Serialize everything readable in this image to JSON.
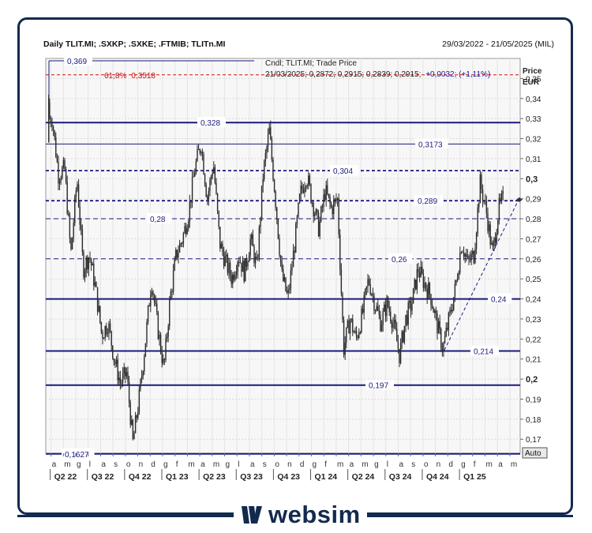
{
  "header": {
    "title": "Daily TLIT.MI; .SXKP; .SXKE; .FTMIB; TLITn.MI",
    "date_range": "29/03/2022 - 21/05/2025 (MIL)"
  },
  "legend": {
    "line1": "Cndl; TLIT.MI; Trade Price",
    "line2_prefix": "21/03/2025; 0,2872; 0,2915; 0,2839; 0,2915;",
    "line2_change": "+0,0032; (+1,11%)"
  },
  "axis": {
    "price_label": "Price",
    "currency_label": "EUR",
    "auto_label": "Auto",
    "y_ticks": [
      "0,17",
      "0,18",
      "0,19",
      "0,2",
      "0,21",
      "0,22",
      "0,23",
      "0,24",
      "0,25",
      "0,26",
      "0,27",
      "0,28",
      "0,29",
      "0,3",
      "0,31",
      "0,32",
      "0,33",
      "0,34",
      "0,35"
    ],
    "bold_ticks": [
      "0,2",
      "0,3"
    ],
    "month_letters": [
      "a",
      "m",
      "g",
      "l",
      "a",
      "s",
      "o",
      "n",
      "d",
      "g",
      "f",
      "m",
      "a",
      "m",
      "g",
      "l",
      "a",
      "s",
      "o",
      "n",
      "d",
      "g",
      "f",
      "m",
      "a",
      "m",
      "g",
      "l",
      "a",
      "s",
      "o",
      "n",
      "d",
      "g",
      "f",
      "m",
      "a",
      "m"
    ],
    "quarters": [
      "Q2 22",
      "Q3 22",
      "Q4 22",
      "Q1 23",
      "Q2 23",
      "Q3 23",
      "Q4 23",
      "Q1 24",
      "Q2 24",
      "Q3 24",
      "Q4 24",
      "Q1 25"
    ]
  },
  "brand": {
    "name": "websim"
  },
  "colors": {
    "level_line": "#1a1a7e",
    "fib_line": "#cc1111",
    "candle": "#2b2b2b",
    "grid": "#dadada",
    "frame": "#132a4f",
    "change_text": "#1a1a9e"
  },
  "chart_data": {
    "type": "candlestick",
    "title": "Daily TLIT.MI; .SXKP; .SXKE; .FTMIB; TLITn.MI",
    "series_name": "Cndl; TLIT.MI; Trade Price",
    "ylabel": "Price EUR",
    "ylim": [
      0.163,
      0.36
    ],
    "x_range": [
      "29/03/2022",
      "21/05/2025"
    ],
    "last_candle": {
      "date": "21/03/2025",
      "open": 0.2872,
      "high": 0.2915,
      "low": 0.2839,
      "close": 0.2915,
      "change": 0.0032,
      "change_pct": 1.11
    },
    "horizontal_levels": [
      {
        "label": "0,369",
        "value": 0.369,
        "style": "solid-thin"
      },
      {
        "label": "0,3518",
        "value": 0.3518,
        "style": "fib",
        "fib_label": "61,8%"
      },
      {
        "label": "0,328",
        "value": 0.328,
        "style": "solid-thick"
      },
      {
        "label": "0,3173",
        "value": 0.3173,
        "style": "solid-thin"
      },
      {
        "label": "0,304",
        "value": 0.304,
        "style": "dashed-thick"
      },
      {
        "label": "0,289",
        "value": 0.289,
        "style": "dashed-thick"
      },
      {
        "label": "0,28",
        "value": 0.28,
        "style": "dashed-thin"
      },
      {
        "label": "0,26",
        "value": 0.26,
        "style": "dashed-thin"
      },
      {
        "label": "0,24",
        "value": 0.24,
        "style": "solid-thick"
      },
      {
        "label": "0,214",
        "value": 0.214,
        "style": "solid-thick"
      },
      {
        "label": "0,197",
        "value": 0.197,
        "style": "solid-thick"
      },
      {
        "label": "0,1627",
        "value": 0.1627,
        "style": "solid-thick"
      }
    ],
    "trendline": {
      "from": {
        "date": "12/2024",
        "value": 0.2145
      },
      "to": {
        "date": "05/2025",
        "value": 0.2895
      },
      "style": "dashed"
    },
    "price_path": [
      [
        "04/2022",
        0.33
      ],
      [
        "04/2022",
        0.302
      ],
      [
        "05/2022",
        0.305
      ],
      [
        "05/2022",
        0.262
      ],
      [
        "06/2022",
        0.3
      ],
      [
        "06/2022",
        0.255
      ],
      [
        "07/2022",
        0.262
      ],
      [
        "07/2022",
        0.245
      ],
      [
        "08/2022",
        0.222
      ],
      [
        "08/2022",
        0.228
      ],
      [
        "09/2022",
        0.21
      ],
      [
        "09/2022",
        0.198
      ],
      [
        "10/2022",
        0.203
      ],
      [
        "10/2022",
        0.168
      ],
      [
        "11/2022",
        0.19
      ],
      [
        "11/2022",
        0.218
      ],
      [
        "12/2022",
        0.25
      ],
      [
        "12/2022",
        0.226
      ],
      [
        "01/2023",
        0.205
      ],
      [
        "01/2023",
        0.24
      ],
      [
        "02/2023",
        0.262
      ],
      [
        "02/2023",
        0.27
      ],
      [
        "03/2023",
        0.283
      ],
      [
        "03/2023",
        0.305
      ],
      [
        "04/2023",
        0.318
      ],
      [
        "04/2023",
        0.29
      ],
      [
        "05/2023",
        0.308
      ],
      [
        "05/2023",
        0.268
      ],
      [
        "06/2023",
        0.258
      ],
      [
        "06/2023",
        0.25
      ],
      [
        "07/2023",
        0.262
      ],
      [
        "07/2023",
        0.253
      ],
      [
        "08/2023",
        0.27
      ],
      [
        "08/2023",
        0.255
      ],
      [
        "09/2023",
        0.302
      ],
      [
        "09/2023",
        0.324
      ],
      [
        "10/2023",
        0.29
      ],
      [
        "10/2023",
        0.252
      ],
      [
        "11/2023",
        0.24
      ],
      [
        "11/2023",
        0.265
      ],
      [
        "12/2023",
        0.292
      ],
      [
        "12/2023",
        0.302
      ],
      [
        "01/2024",
        0.288
      ],
      [
        "01/2024",
        0.275
      ],
      [
        "02/2024",
        0.294
      ],
      [
        "02/2024",
        0.285
      ],
      [
        "03/2024",
        0.29
      ],
      [
        "03/2024",
        0.215
      ],
      [
        "04/2024",
        0.23
      ],
      [
        "04/2024",
        0.22
      ],
      [
        "05/2024",
        0.232
      ],
      [
        "05/2024",
        0.25
      ],
      [
        "06/2024",
        0.238
      ],
      [
        "06/2024",
        0.228
      ],
      [
        "07/2024",
        0.238
      ],
      [
        "07/2024",
        0.228
      ],
      [
        "08/2024",
        0.212
      ],
      [
        "08/2024",
        0.23
      ],
      [
        "09/2024",
        0.238
      ],
      [
        "09/2024",
        0.255
      ],
      [
        "10/2024",
        0.248
      ],
      [
        "10/2024",
        0.242
      ],
      [
        "11/2024",
        0.228
      ],
      [
        "11/2024",
        0.215
      ],
      [
        "12/2024",
        0.23
      ],
      [
        "12/2024",
        0.245
      ],
      [
        "01/2025",
        0.268
      ],
      [
        "01/2025",
        0.258
      ],
      [
        "02/2025",
        0.262
      ],
      [
        "02/2025",
        0.298
      ],
      [
        "03/2025",
        0.284
      ],
      [
        "03/2025",
        0.262
      ],
      [
        "04/2025",
        0.285
      ],
      [
        "04/2025",
        0.2915
      ]
    ]
  }
}
